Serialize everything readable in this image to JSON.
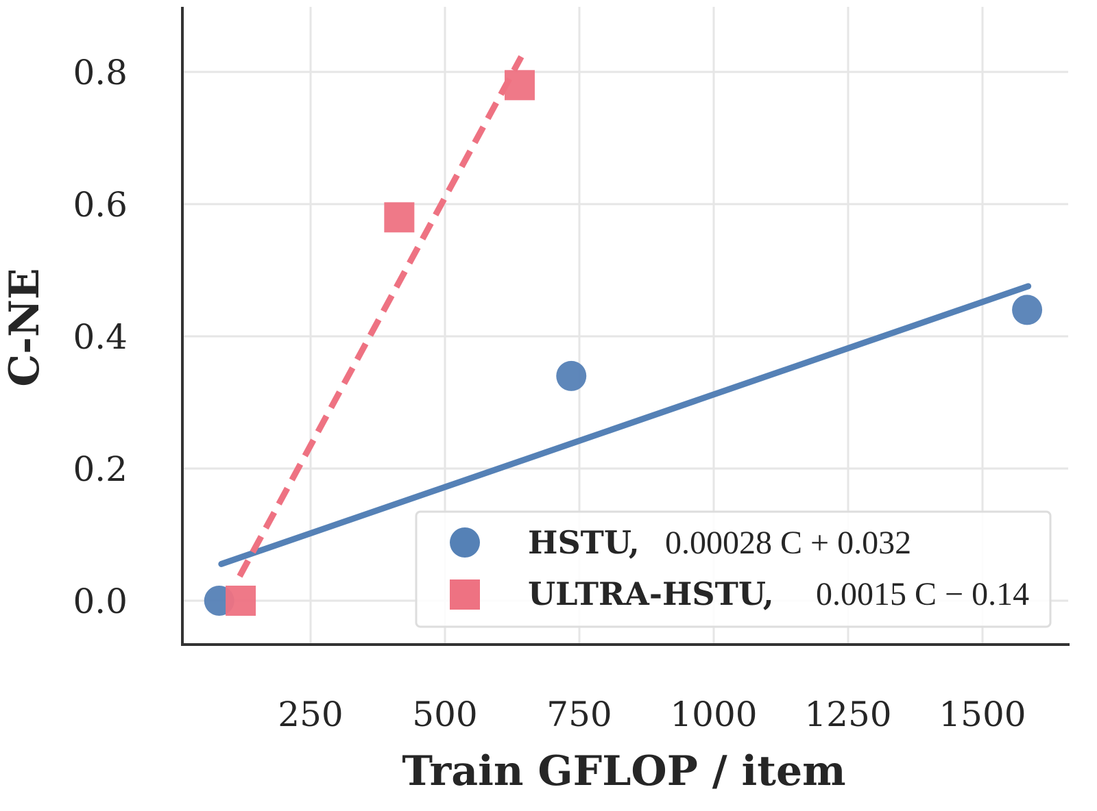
{
  "chart_data": {
    "type": "scatter",
    "title": "",
    "xlabel": "Train GFLOP / item",
    "ylabel": "C-NE",
    "xlim": [
      10,
      1660
    ],
    "ylim": [
      -0.065,
      0.9
    ],
    "xticks": [
      250,
      500,
      750,
      1000,
      1250,
      1500
    ],
    "xtick_labels": [
      "250",
      "500",
      "750",
      "1000",
      "1250",
      "1500"
    ],
    "yticks": [
      0.0,
      0.2,
      0.4,
      0.6,
      0.8
    ],
    "ytick_labels": [
      "0.0",
      "0.2",
      "0.4",
      "0.6",
      "0.8"
    ],
    "grid": true,
    "legend_position": "bottom-right",
    "series": [
      {
        "name": "HSTU,",
        "equation": "0.00028 C + 0.032",
        "marker": "circle",
        "line": "solid",
        "color": "#5581b6",
        "x": [
          80,
          735,
          1583
        ],
        "y": [
          0.0,
          0.34,
          0.44
        ],
        "fit": {
          "slope": 0.00028,
          "intercept": 0.032,
          "x_range": [
            84,
            1585
          ]
        }
      },
      {
        "name": "ULTRA-HSTU,",
        "equation": "0.0015 C − 0.14",
        "marker": "square",
        "line": "dashed",
        "color": "#ee7282",
        "x": [
          120,
          415,
          639
        ],
        "y": [
          0.0,
          0.58,
          0.78
        ],
        "fit": {
          "slope": 0.0015,
          "intercept": -0.14,
          "x_range": [
            118,
            642
          ]
        }
      }
    ]
  }
}
